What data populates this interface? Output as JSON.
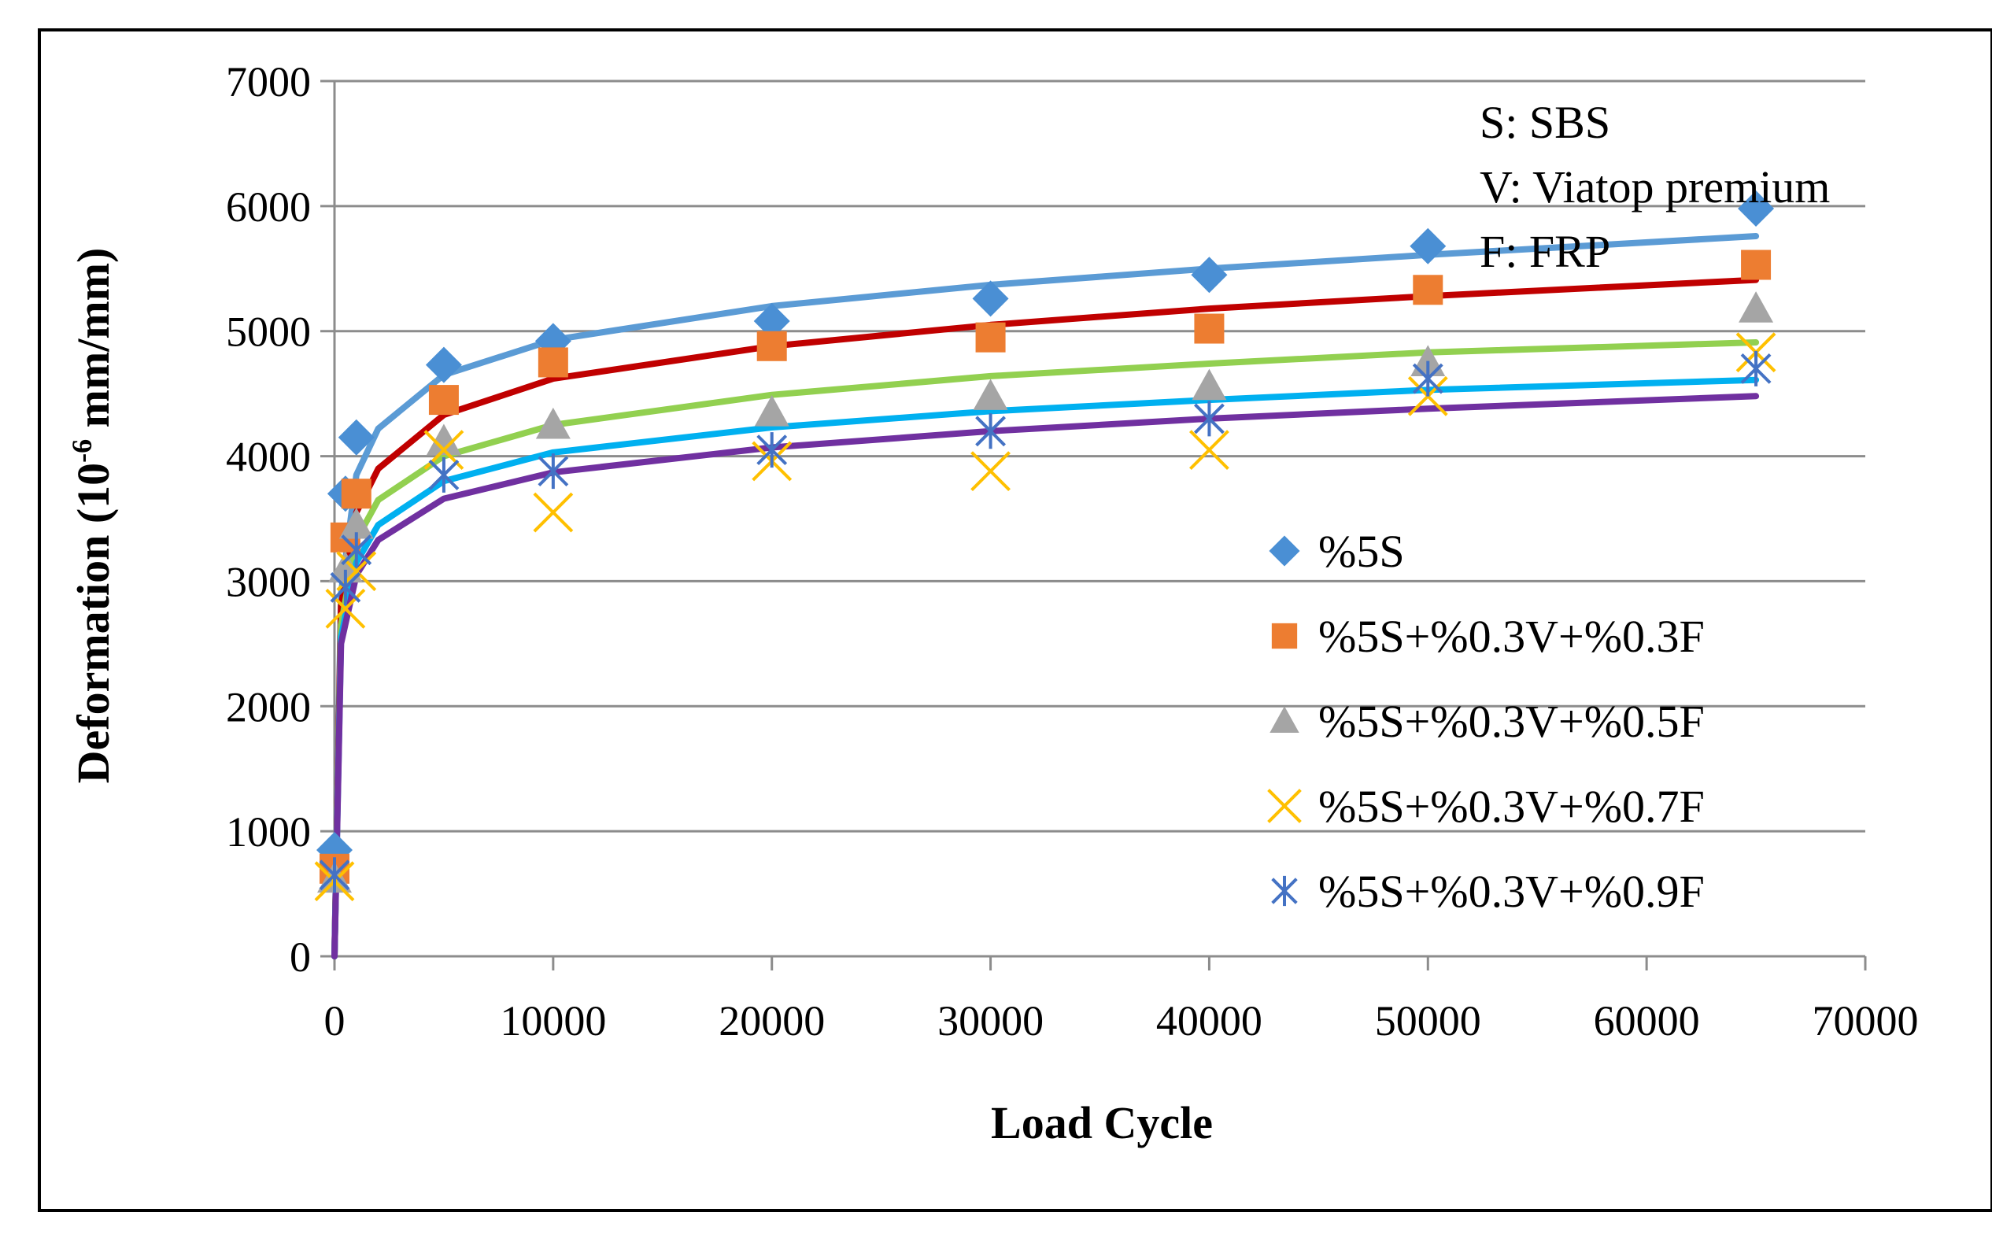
{
  "chart_data": {
    "type": "scatter",
    "title": "",
    "xlabel": "Load Cycle",
    "ylabel_main": "Deformation  (10",
    "ylabel_sup": "-6",
    "ylabel_rest": " mm/mm)",
    "xlim": [
      0,
      70000
    ],
    "ylim": [
      0,
      7000
    ],
    "xticks": [
      0,
      10000,
      20000,
      30000,
      40000,
      50000,
      60000,
      70000
    ],
    "yticks": [
      0,
      1000,
      2000,
      3000,
      4000,
      5000,
      6000,
      7000
    ],
    "grid": "horizontal",
    "legend_position": "right",
    "notes": [
      "S: SBS",
      "V: Viatop premium",
      "F: FRP"
    ],
    "series": [
      {
        "name": "%5S",
        "marker": "diamond",
        "marker_color": "#4a8fd4",
        "trend_color": "#5b9bd5",
        "points": [
          [
            0,
            850
          ],
          [
            500,
            3700
          ],
          [
            1000,
            4150
          ],
          [
            5000,
            4730
          ],
          [
            10000,
            4920
          ],
          [
            20000,
            5080
          ],
          [
            30000,
            5260
          ],
          [
            40000,
            5450
          ],
          [
            50000,
            5680
          ],
          [
            65000,
            5980
          ]
        ],
        "trend_points": [
          [
            300,
            2900
          ],
          [
            1000,
            3850
          ],
          [
            2000,
            4220
          ],
          [
            5000,
            4650
          ],
          [
            10000,
            4930
          ],
          [
            20000,
            5200
          ],
          [
            30000,
            5370
          ],
          [
            40000,
            5500
          ],
          [
            50000,
            5610
          ],
          [
            65000,
            5760
          ]
        ]
      },
      {
        "name": "%5S+%0.3V+%0.3F",
        "marker": "square",
        "marker_color": "#ed7d31",
        "trend_color": "#c00000",
        "points": [
          [
            0,
            700
          ],
          [
            500,
            3350
          ],
          [
            1000,
            3700
          ],
          [
            5000,
            4450
          ],
          [
            10000,
            4750
          ],
          [
            20000,
            4880
          ],
          [
            30000,
            4950
          ],
          [
            40000,
            5020
          ],
          [
            50000,
            5330
          ],
          [
            65000,
            5530
          ]
        ],
        "trend_points": [
          [
            300,
            2800
          ],
          [
            1000,
            3550
          ],
          [
            2000,
            3900
          ],
          [
            5000,
            4330
          ],
          [
            10000,
            4620
          ],
          [
            20000,
            4880
          ],
          [
            30000,
            5050
          ],
          [
            40000,
            5180
          ],
          [
            50000,
            5280
          ],
          [
            65000,
            5410
          ]
        ]
      },
      {
        "name": "%5S+%0.3V+%0.5F",
        "marker": "triangle",
        "marker_color": "#a5a5a5",
        "trend_color": "#92d050",
        "points": [
          [
            0,
            620
          ],
          [
            500,
            3100
          ],
          [
            1000,
            3450
          ],
          [
            5000,
            4120
          ],
          [
            10000,
            4250
          ],
          [
            20000,
            4350
          ],
          [
            30000,
            4480
          ],
          [
            40000,
            4560
          ],
          [
            50000,
            4750
          ],
          [
            65000,
            5180
          ]
        ],
        "trend_points": [
          [
            300,
            2650
          ],
          [
            1000,
            3330
          ],
          [
            2000,
            3650
          ],
          [
            5000,
            4000
          ],
          [
            10000,
            4250
          ],
          [
            20000,
            4490
          ],
          [
            30000,
            4640
          ],
          [
            40000,
            4740
          ],
          [
            50000,
            4830
          ],
          [
            65000,
            4910
          ]
        ]
      },
      {
        "name": "%5S+%0.3V+%0.7F",
        "marker": "x",
        "marker_color": "#ffc000",
        "trend_color": "#00b0f0",
        "points": [
          [
            0,
            600
          ],
          [
            500,
            2780
          ],
          [
            1000,
            3080
          ],
          [
            5000,
            4050
          ],
          [
            10000,
            3550
          ],
          [
            20000,
            3960
          ],
          [
            30000,
            3880
          ],
          [
            40000,
            4050
          ],
          [
            50000,
            4480
          ],
          [
            65000,
            4830
          ]
        ],
        "trend_points": [
          [
            300,
            2550
          ],
          [
            1000,
            3150
          ],
          [
            2000,
            3450
          ],
          [
            5000,
            3800
          ],
          [
            10000,
            4030
          ],
          [
            20000,
            4230
          ],
          [
            30000,
            4360
          ],
          [
            40000,
            4450
          ],
          [
            50000,
            4530
          ],
          [
            65000,
            4610
          ]
        ]
      },
      {
        "name": "%5S+%0.3V+%0.9F",
        "marker": "star",
        "marker_color": "#4472c4",
        "trend_color": "#7030a0",
        "points": [
          [
            0,
            650
          ],
          [
            500,
            2950
          ],
          [
            1000,
            3250
          ],
          [
            5000,
            3850
          ],
          [
            10000,
            3880
          ],
          [
            20000,
            4050
          ],
          [
            30000,
            4200
          ],
          [
            40000,
            4300
          ],
          [
            50000,
            4620
          ],
          [
            65000,
            4700
          ]
        ],
        "trend_points": [
          [
            300,
            2500
          ],
          [
            1000,
            3050
          ],
          [
            2000,
            3330
          ],
          [
            5000,
            3660
          ],
          [
            10000,
            3870
          ],
          [
            20000,
            4070
          ],
          [
            30000,
            4200
          ],
          [
            40000,
            4300
          ],
          [
            50000,
            4380
          ],
          [
            65000,
            4480
          ]
        ]
      }
    ]
  }
}
